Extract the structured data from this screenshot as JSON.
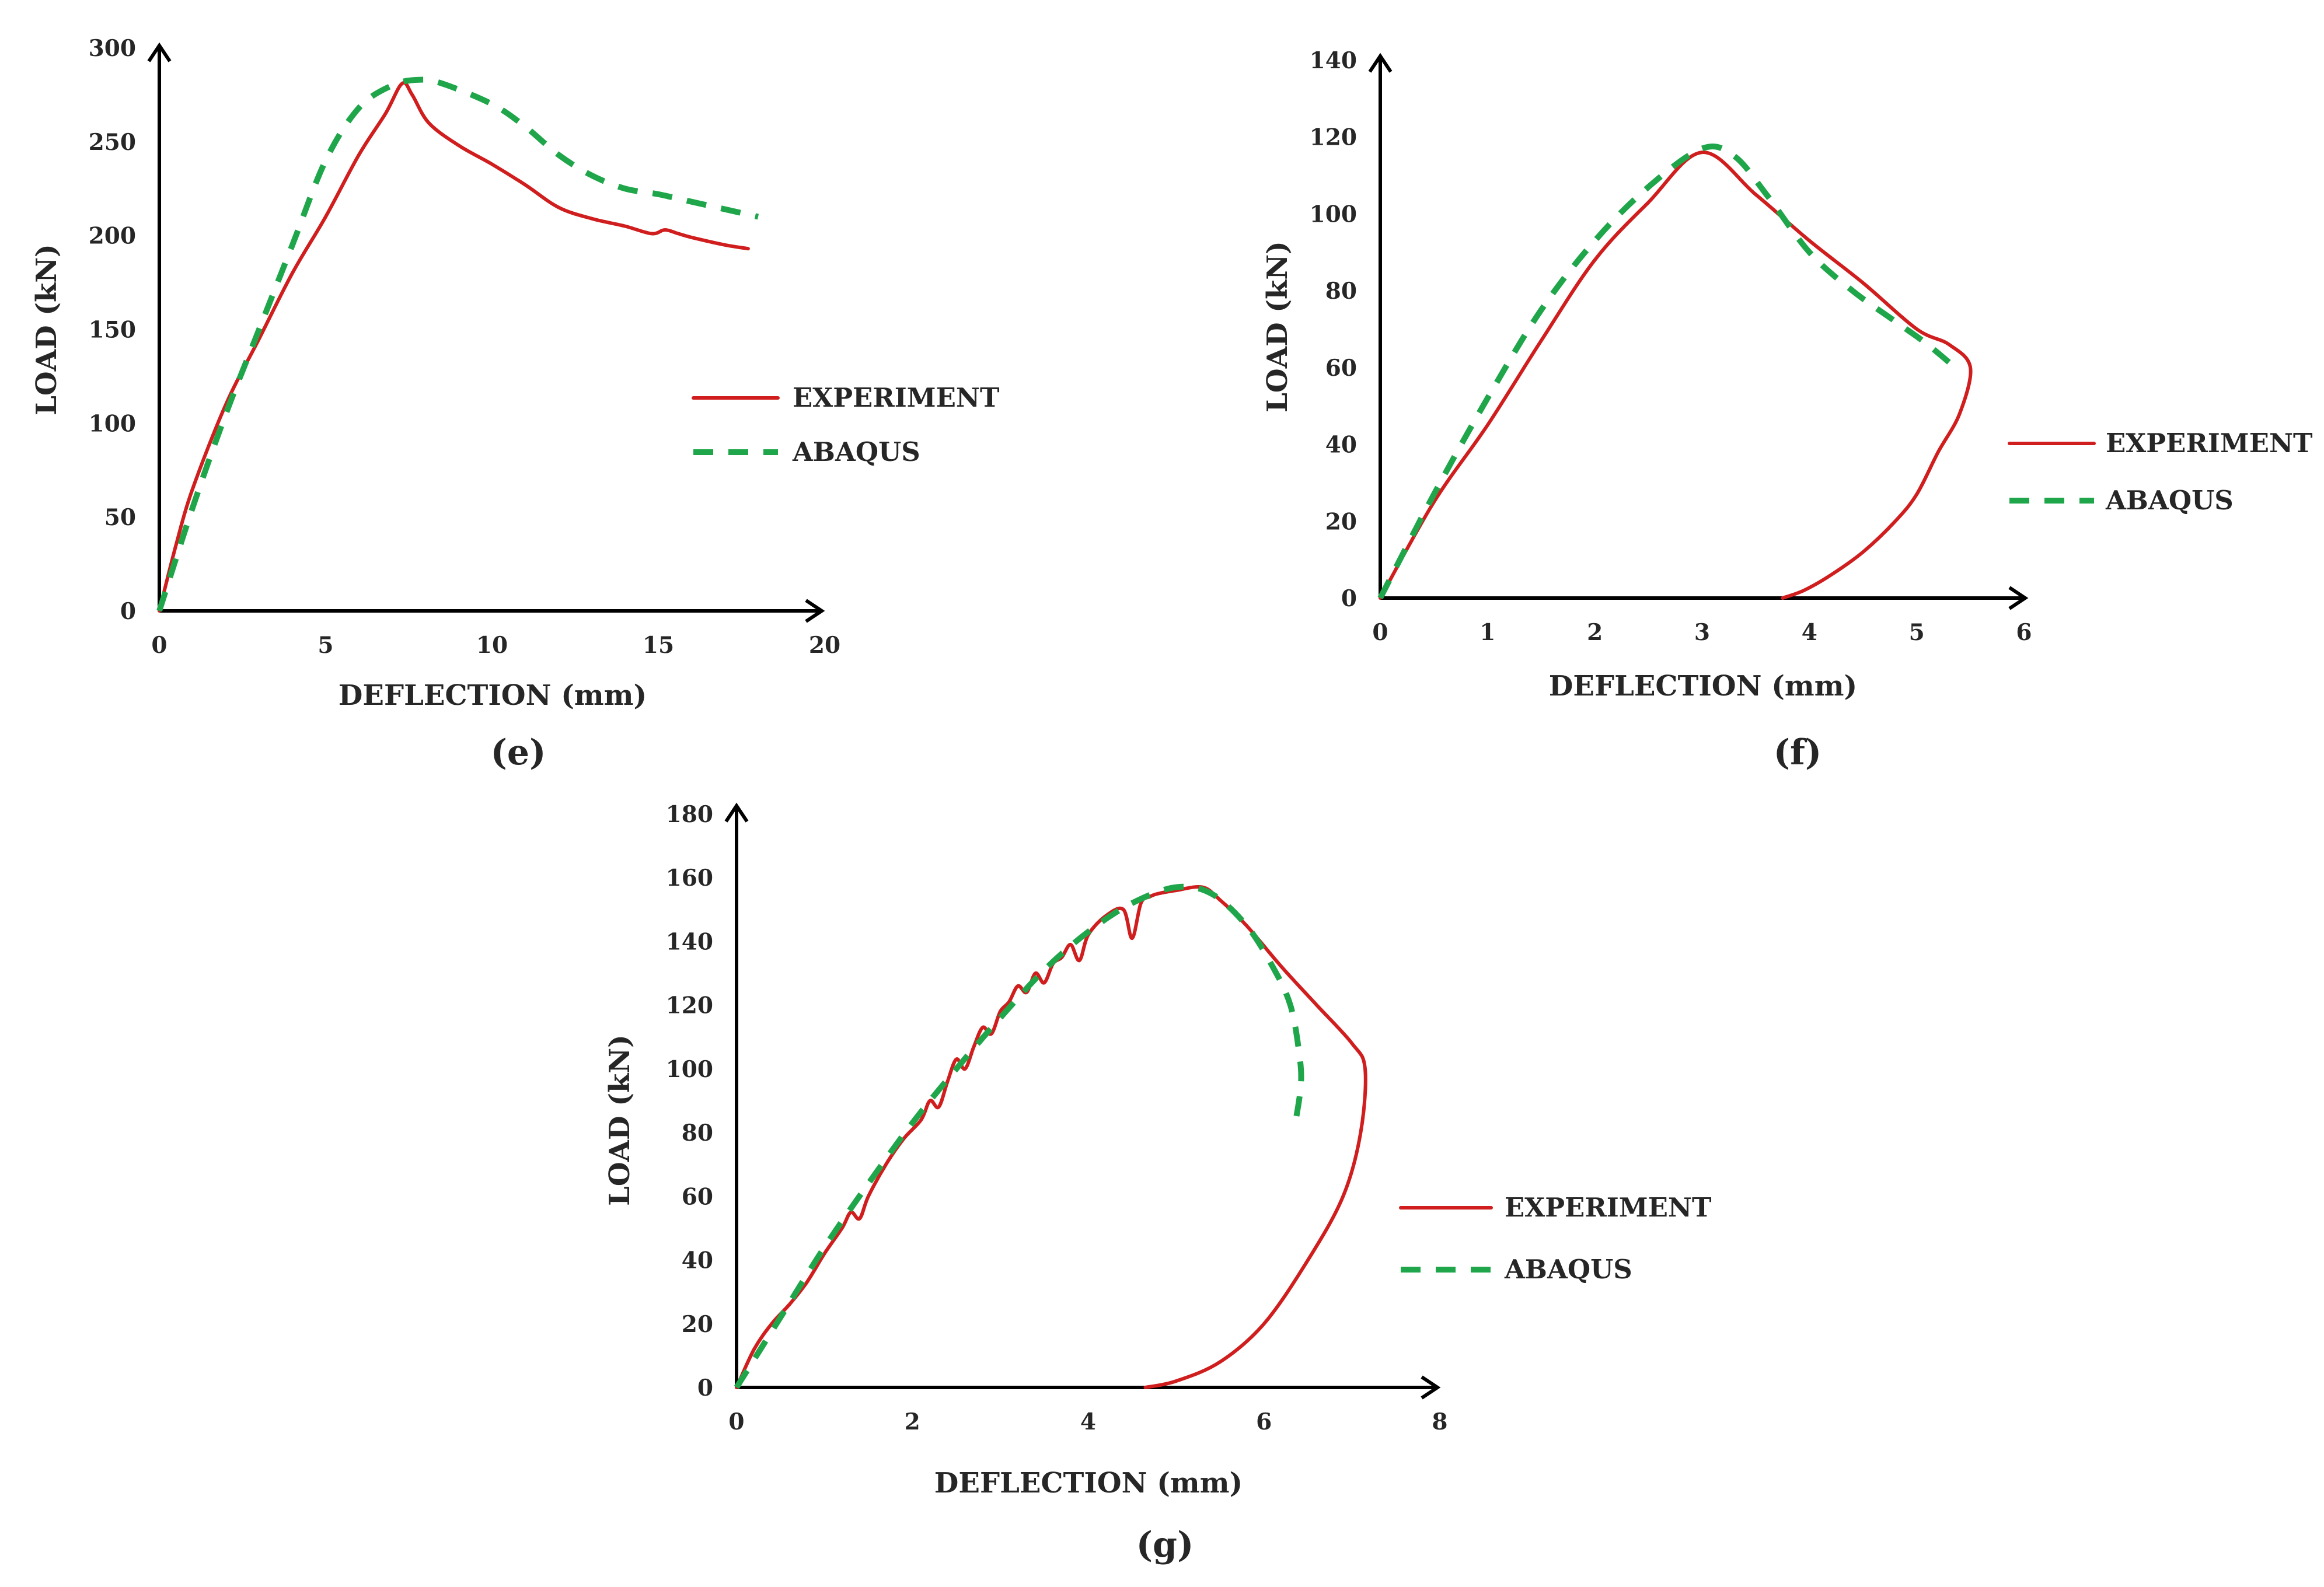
{
  "figure": {
    "colors": {
      "experiment": "#d01d1d",
      "abaqus": "#1fa64a",
      "axis": "#000000"
    }
  },
  "chart_data": [
    {
      "panel": "e",
      "panel_label": "(e)",
      "type": "line",
      "xlabel": "DEFLECTION (mm)",
      "ylabel": "LOAD (kN)",
      "xlim": [
        0,
        20
      ],
      "ylim": [
        0,
        300
      ],
      "xticks": [
        "0",
        "5",
        "10",
        "15",
        "20"
      ],
      "yticks": [
        "0",
        "50",
        "100",
        "150",
        "200",
        "250",
        "300"
      ],
      "legend": {
        "position": "middle-right",
        "entries": [
          "EXPERIMENT",
          "ABAQUS"
        ]
      },
      "series": [
        {
          "name": "EXPERIMENT",
          "style": "solid",
          "x": [
            0,
            0.5,
            1,
            2,
            3,
            4,
            5,
            6,
            6.8,
            7.3,
            7.6,
            8.1,
            9,
            10,
            11,
            12,
            13,
            14,
            14.8,
            15.2,
            15.6,
            16,
            17,
            17.7
          ],
          "y": [
            0,
            35,
            65,
            110,
            145,
            180,
            210,
            243,
            265,
            281,
            275,
            260,
            248,
            238,
            227,
            215,
            209,
            205,
            201,
            203,
            201,
            199,
            195,
            193
          ]
        },
        {
          "name": "ABAQUS",
          "style": "dashed",
          "x": [
            0,
            1,
            2,
            3,
            4,
            5,
            6,
            7,
            7.8,
            8.5,
            10,
            11,
            12,
            13,
            14,
            15,
            16,
            17,
            18
          ],
          "y": [
            0,
            55,
            105,
            150,
            195,
            240,
            268,
            280,
            283,
            281,
            270,
            258,
            243,
            232,
            225,
            222,
            218,
            214,
            210
          ]
        }
      ]
    },
    {
      "panel": "f",
      "panel_label": "(f)",
      "type": "line",
      "xlabel": "DEFLECTION (mm)",
      "ylabel": "LOAD (kN)",
      "xlim": [
        0,
        6
      ],
      "ylim": [
        0,
        140
      ],
      "xticks": [
        "0",
        "1",
        "2",
        "3",
        "4",
        "5",
        "6"
      ],
      "yticks": [
        "0",
        "20",
        "40",
        "60",
        "80",
        "100",
        "120",
        "140"
      ],
      "legend": {
        "position": "bottom-right",
        "entries": [
          "EXPERIMENT",
          "ABAQUS"
        ]
      },
      "series": [
        {
          "name": "EXPERIMENT",
          "style": "solid",
          "x": [
            0,
            0.5,
            1,
            1.5,
            2,
            2.5,
            3.0,
            3.5,
            4,
            4.5,
            5.0,
            5.3,
            5.5,
            5.4,
            5.2,
            5.0,
            4.8,
            4.5,
            4.2,
            3.95,
            3.75
          ],
          "y": [
            0,
            25,
            45,
            67,
            88,
            103,
            116,
            105,
            93,
            82,
            70,
            66,
            60,
            48,
            38,
            27,
            20,
            12,
            6,
            2,
            0
          ]
        },
        {
          "name": "ABAQUS",
          "style": "dashed",
          "x": [
            0,
            0.5,
            1,
            1.5,
            2,
            2.5,
            3.0,
            3.3,
            3.6,
            4,
            4.4,
            4.8,
            5.1,
            5.4
          ],
          "y": [
            0,
            27,
            52,
            75,
            93,
            107,
            117,
            115,
            105,
            90,
            80,
            72,
            66,
            59
          ]
        }
      ]
    },
    {
      "panel": "g",
      "panel_label": "(g)",
      "type": "line",
      "xlabel": "DEFLECTION (mm)",
      "ylabel": "LOAD (kN)",
      "xlim": [
        0,
        8
      ],
      "ylim": [
        0,
        180
      ],
      "xticks": [
        "0",
        "2",
        "4",
        "6",
        "8"
      ],
      "yticks": [
        "0",
        "20",
        "40",
        "60",
        "80",
        "100",
        "120",
        "140",
        "160",
        "180"
      ],
      "legend": {
        "position": "middle-right",
        "entries": [
          "EXPERIMENT",
          "ABAQUS"
        ]
      },
      "series": [
        {
          "name": "EXPERIMENT",
          "style": "solid",
          "x": [
            0,
            0.2,
            0.4,
            0.6,
            0.8,
            1.0,
            1.2,
            1.3,
            1.4,
            1.5,
            1.7,
            1.9,
            2.1,
            2.2,
            2.3,
            2.4,
            2.5,
            2.6,
            2.7,
            2.8,
            2.9,
            3.0,
            3.1,
            3.2,
            3.3,
            3.4,
            3.5,
            3.6,
            3.7,
            3.8,
            3.9,
            4.0,
            4.2,
            4.4,
            4.5,
            4.6,
            4.7,
            4.8,
            5.0,
            5.3,
            5.5,
            5.8,
            6.2,
            6.6,
            7.0,
            7.15,
            7.1,
            6.9,
            6.5,
            6.0,
            5.5,
            5.0,
            4.65
          ],
          "y": [
            0,
            12,
            20,
            26,
            33,
            42,
            50,
            55,
            53,
            60,
            70,
            78,
            84,
            90,
            88,
            96,
            103,
            100,
            107,
            113,
            111,
            118,
            121,
            126,
            124,
            130,
            127,
            133,
            135,
            139,
            134,
            142,
            148,
            150,
            141,
            152,
            154,
            155,
            156,
            157,
            153,
            145,
            132,
            120,
            108,
            100,
            80,
            60,
            40,
            20,
            8,
            2,
            0
          ]
        },
        {
          "name": "ABAQUS",
          "style": "dashed",
          "x": [
            0,
            0.5,
            1,
            1.5,
            2,
            2.5,
            3,
            3.5,
            4,
            4.5,
            5,
            5.4,
            5.8,
            6.1,
            6.3,
            6.4,
            6.42,
            6.35
          ],
          "y": [
            0,
            22,
            44,
            64,
            83,
            100,
            116,
            131,
            143,
            152,
            157,
            155,
            145,
            132,
            120,
            105,
            95,
            82
          ]
        }
      ]
    }
  ]
}
